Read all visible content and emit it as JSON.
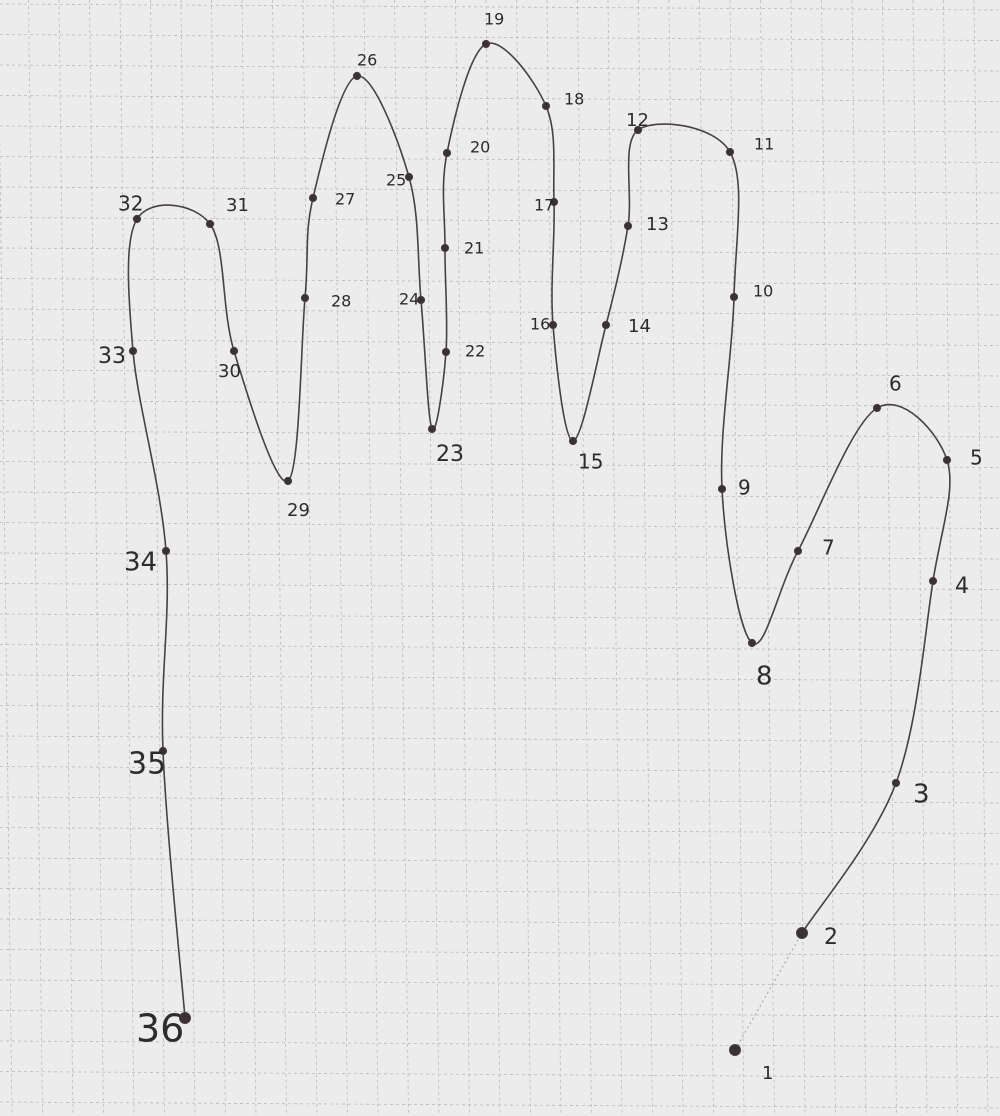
{
  "drawing": {
    "description_free": true,
    "colors": {
      "paper": "#ececed",
      "grid": "#b9b9bd",
      "ink": "#4a3f44",
      "dot": "#3b3035"
    },
    "points": [
      {
        "label": "1"
      },
      {
        "label": "2"
      },
      {
        "label": "3"
      },
      {
        "label": "4"
      },
      {
        "label": "5"
      },
      {
        "label": "6"
      },
      {
        "label": "7"
      },
      {
        "label": "8"
      },
      {
        "label": "9"
      },
      {
        "label": "10"
      },
      {
        "label": "11"
      },
      {
        "label": "12"
      },
      {
        "label": "13"
      },
      {
        "label": "14"
      },
      {
        "label": "15"
      },
      {
        "label": "16"
      },
      {
        "label": "17"
      },
      {
        "label": "18"
      },
      {
        "label": "19"
      },
      {
        "label": "20"
      },
      {
        "label": "21"
      },
      {
        "label": "22"
      },
      {
        "label": "23"
      },
      {
        "label": "24"
      },
      {
        "label": "25"
      },
      {
        "label": "26"
      },
      {
        "label": "27"
      },
      {
        "label": "28"
      },
      {
        "label": "29"
      },
      {
        "label": "30"
      },
      {
        "label": "31"
      },
      {
        "label": "32"
      },
      {
        "label": "33"
      },
      {
        "label": "34"
      },
      {
        "label": "35"
      },
      {
        "label": "36"
      }
    ]
  }
}
